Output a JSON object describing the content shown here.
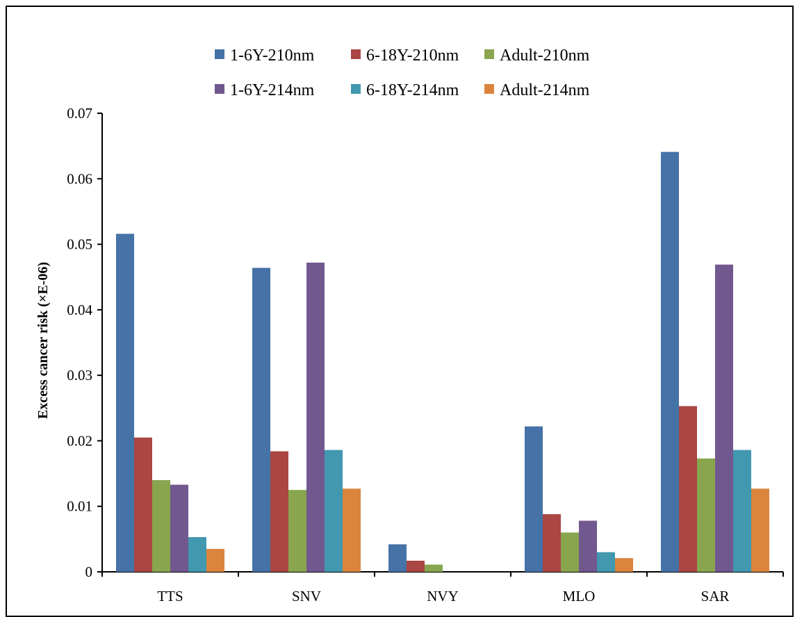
{
  "chart_data": {
    "type": "bar",
    "title": "",
    "xlabel": "",
    "ylabel": "Excess cancer risk (×E-06)",
    "ylim": [
      0,
      0.07
    ],
    "yticks": [
      "0",
      "0.01",
      "0.02",
      "0.03",
      "0.04",
      "0.05",
      "0.06",
      "0.07"
    ],
    "grid": false,
    "legend_position": "top",
    "categories": [
      "TTS",
      "SNV",
      "NVY",
      "MLO",
      "SAR"
    ],
    "series": [
      {
        "name": "1-6Y-210nm",
        "color": "#4572A7",
        "values": [
          0.0516,
          0.0464,
          0.0042,
          0.0222,
          0.0641
        ]
      },
      {
        "name": "6-18Y-210nm",
        "color": "#AA4643",
        "values": [
          0.0205,
          0.0184,
          0.0017,
          0.0088,
          0.0253
        ]
      },
      {
        "name": "Adult-210nm",
        "color": "#89A54E",
        "values": [
          0.014,
          0.0125,
          0.0011,
          0.006,
          0.0173
        ]
      },
      {
        "name": "1-6Y-214nm",
        "color": "#71588F",
        "values": [
          0.0133,
          0.0472,
          0.0,
          0.0078,
          0.0469
        ]
      },
      {
        "name": "6-18Y-214nm",
        "color": "#4198AF",
        "values": [
          0.0053,
          0.0186,
          0.0,
          0.003,
          0.0186
        ]
      },
      {
        "name": "Adult-214nm",
        "color": "#DB843D",
        "values": [
          0.0035,
          0.0127,
          0.0,
          0.0021,
          0.0127
        ]
      }
    ]
  }
}
